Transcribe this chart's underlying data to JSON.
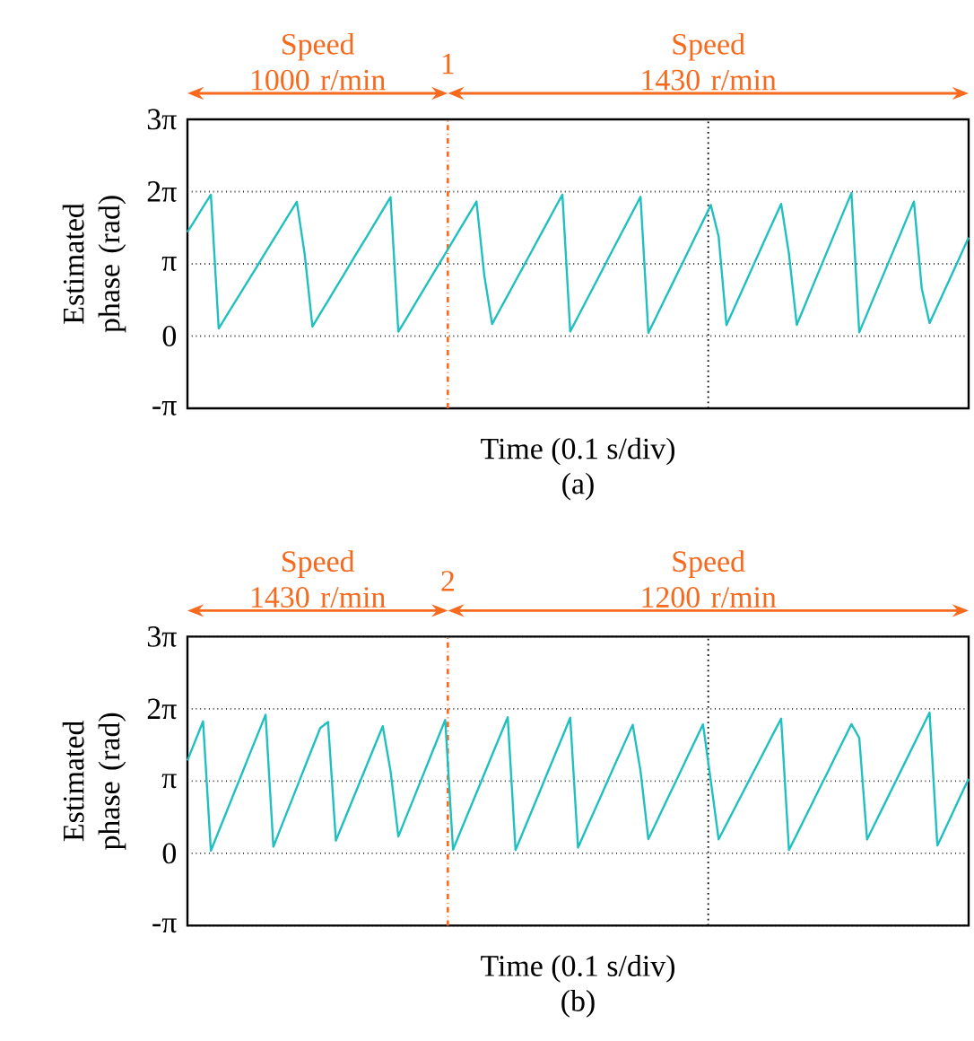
{
  "chart_data": [
    {
      "type": "line",
      "title": "(a)",
      "xlabel": "Time (0.1 s/div)",
      "ylabel": "Estimated phase (rad)",
      "categories": [
        null,
        null,
        null,
        null,
        null,
        null,
        null,
        null,
        null,
        null,
        null,
        null,
        null,
        null,
        null,
        null,
        null,
        null,
        null,
        null,
        null,
        null,
        null,
        null,
        null,
        null,
        null,
        null,
        null,
        null,
        null,
        null,
        null,
        null,
        null,
        null,
        null,
        null,
        null,
        null,
        null,
        null,
        null,
        null,
        null,
        null,
        null,
        null,
        null,
        null,
        null,
        null,
        null,
        null,
        null,
        null,
        null,
        null,
        null,
        null,
        null,
        null,
        null,
        null,
        null,
        null,
        null,
        null,
        null,
        null,
        null,
        null,
        null,
        null,
        null,
        null,
        null,
        null,
        null,
        null,
        null,
        null,
        null,
        null,
        null,
        null,
        null,
        null,
        null,
        null,
        null,
        null,
        null,
        null,
        null,
        null,
        null,
        null,
        null,
        null,
        null
      ],
      "ylim": [
        -3.1416,
        9.4248
      ],
      "yticks": [
        {
          "value": -3.1416,
          "label": "-π"
        },
        {
          "value": 0,
          "label": "0"
        },
        {
          "value": 3.1416,
          "label": "π"
        },
        {
          "value": 6.2832,
          "label": "2π"
        },
        {
          "value": 9.4248,
          "label": "3π"
        }
      ],
      "grid": "y",
      "tick_labels": "y",
      "series": [
        {
          "color": "#20c0c0",
          "values": [
            4.52,
            5.06,
            5.61,
            6.15,
            0.33,
            0.88,
            1.43,
            1.98,
            2.53,
            3.08,
            3.64,
            4.19,
            4.74,
            5.29,
            5.84,
            3.58,
            0.41,
            0.98,
            1.54,
            2.1,
            2.66,
            3.23,
            3.79,
            4.35,
            4.91,
            5.48,
            6.04,
            0.19,
            0.75,
            1.32,
            1.89,
            2.45,
            3.02,
            3.58,
            4.15,
            4.72,
            5.28,
            5.85,
            2.64,
            0.52,
            1.15,
            1.77,
            2.4,
            3.02,
            3.65,
            4.28,
            4.9,
            5.53,
            6.15,
            0.2,
            0.85,
            1.5,
            2.15,
            2.8,
            3.46,
            4.11,
            4.76,
            5.41,
            6.06,
            0.14,
            0.83,
            1.53,
            2.22,
            2.92,
            3.61,
            4.31,
            5.0,
            5.7,
            4.33,
            0.48,
            1.23,
            1.98,
            2.74,
            3.49,
            4.25,
            5.0,
            5.75,
            3.58,
            0.49,
            1.31,
            2.13,
            2.95,
            3.77,
            4.59,
            5.41,
            6.22,
            0.16,
            0.97,
            1.79,
            2.6,
            3.41,
            4.22,
            5.04,
            5.85,
            2.07,
            0.57,
            1.31,
            2.05,
            2.79,
            3.53,
            4.28
          ]
        }
      ],
      "annotations": [
        "Speed 1000 r/min",
        "Speed 1430 r/min",
        "1"
      ]
    },
    {
      "type": "line",
      "title": "(b)",
      "xlabel": "Time (0.1 s/div)",
      "ylabel": "Estimated phase (rad)",
      "categories": [
        null,
        null,
        null,
        null,
        null,
        null,
        null,
        null,
        null,
        null,
        null,
        null,
        null,
        null,
        null,
        null,
        null,
        null,
        null,
        null,
        null,
        null,
        null,
        null,
        null,
        null,
        null,
        null,
        null,
        null,
        null,
        null,
        null,
        null,
        null,
        null,
        null,
        null,
        null,
        null,
        null,
        null,
        null,
        null,
        null,
        null,
        null,
        null,
        null,
        null,
        null,
        null,
        null,
        null,
        null,
        null,
        null,
        null,
        null,
        null,
        null,
        null,
        null,
        null,
        null,
        null,
        null,
        null,
        null,
        null,
        null,
        null,
        null,
        null,
        null,
        null,
        null,
        null,
        null,
        null,
        null,
        null,
        null,
        null,
        null,
        null,
        null,
        null,
        null,
        null,
        null,
        null,
        null,
        null,
        null,
        null,
        null,
        null,
        null,
        null,
        null
      ],
      "ylim": [
        -3.1416,
        9.4248
      ],
      "yticks": [
        {
          "value": -3.1416,
          "label": "-π"
        },
        {
          "value": 0,
          "label": "0"
        },
        {
          "value": 3.1416,
          "label": "π"
        },
        {
          "value": 6.2832,
          "label": "2π"
        },
        {
          "value": 9.4248,
          "label": "3π"
        }
      ],
      "grid": "y",
      "tick_labels": "y",
      "series": [
        {
          "color": "#20c0c0",
          "values": [
            4.04,
            4.89,
            5.74,
            0.11,
            0.96,
            1.8,
            2.65,
            3.49,
            4.34,
            5.18,
            6.03,
            0.29,
            1.15,
            2.01,
            2.87,
            3.73,
            4.59,
            5.45,
            5.71,
            0.55,
            1.38,
            2.21,
            3.04,
            3.87,
            4.7,
            5.53,
            3.58,
            0.73,
            1.58,
            2.42,
            3.27,
            4.11,
            4.96,
            5.8,
            0.16,
            0.99,
            1.81,
            2.63,
            3.45,
            4.28,
            5.1,
            5.92,
            0.14,
            0.96,
            1.78,
            2.6,
            3.43,
            4.25,
            5.07,
            5.9,
            0.25,
            1.02,
            1.78,
            2.54,
            3.31,
            4.07,
            4.83,
            5.59,
            3.58,
            0.62,
            1.33,
            2.05,
            2.76,
            3.47,
            4.19,
            4.9,
            5.61,
            3.14,
            0.61,
            1.27,
            1.93,
            2.58,
            3.24,
            3.89,
            4.55,
            5.21,
            5.86,
            0.14,
            0.82,
            1.51,
            2.19,
            2.88,
            3.56,
            4.25,
            4.93,
            5.62,
            5.02,
            0.6,
            1.29,
            1.98,
            2.67,
            3.36,
            4.05,
            4.74,
            5.43,
            6.12,
            0.34,
            1.06,
            1.79,
            2.52,
            3.24
          ]
        }
      ],
      "annotations": [
        "Speed 1430 r/min",
        "Speed 1200 r/min",
        "2"
      ]
    }
  ]
}
